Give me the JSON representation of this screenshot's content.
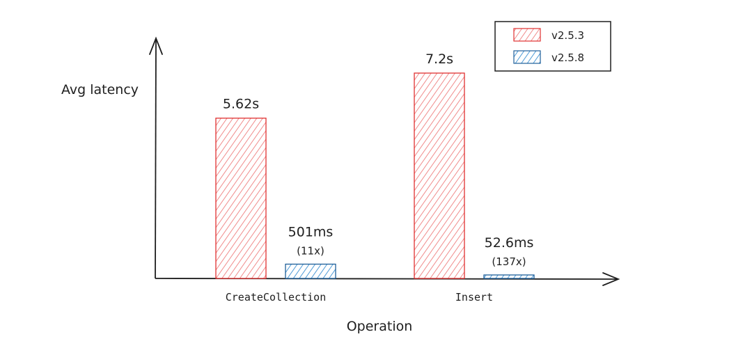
{
  "chart_data": {
    "type": "bar",
    "xlabel": "Operation",
    "ylabel": "Avg latency",
    "ylim": [
      0,
      8
    ],
    "grid": false,
    "legend_position": "top-right",
    "categories": [
      "CreateCollection",
      "Insert"
    ],
    "series": [
      {
        "name": "v2.5.3",
        "color": "#e03131",
        "values": [
          5.62,
          7.2
        ],
        "labels": [
          "5.62s",
          "7.2s"
        ]
      },
      {
        "name": "v2.5.8",
        "color": "#1971c2",
        "values": [
          0.501,
          0.0526
        ],
        "labels": [
          "501ms",
          "52.6ms"
        ],
        "annotations": [
          "(11x)",
          "(137x)"
        ]
      }
    ]
  }
}
